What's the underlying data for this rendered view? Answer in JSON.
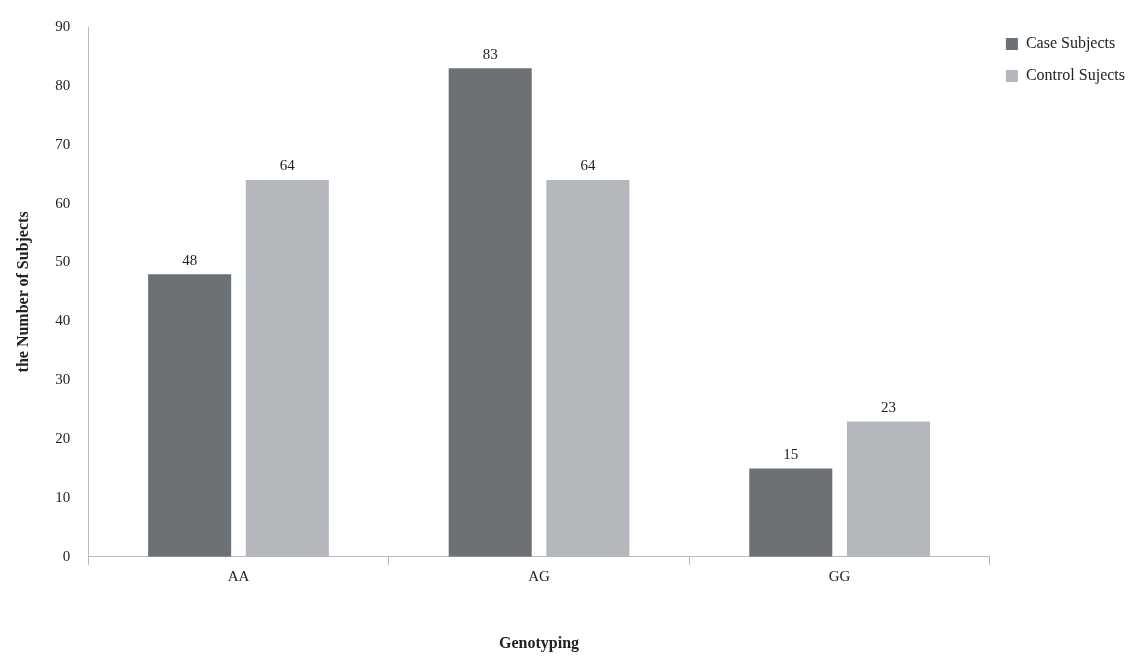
{
  "chart_data": {
    "type": "bar",
    "xlabel": "Genotyping",
    "ylabel": "the Number of Subjects",
    "categories": [
      "AA",
      "AG",
      "GG"
    ],
    "series": [
      {
        "name": "Case Subjects",
        "color": "#6b7175",
        "values": [
          48,
          83,
          15
        ]
      },
      {
        "name": "Control Sujects",
        "color": "#b4b8bd",
        "values": [
          64,
          64,
          23
        ]
      }
    ],
    "ylim": [
      0,
      90
    ],
    "yticks": [
      0,
      10,
      20,
      30,
      40,
      50,
      60,
      70,
      80,
      90
    ],
    "grid": false,
    "legend": "top right",
    "data_labels": true
  }
}
